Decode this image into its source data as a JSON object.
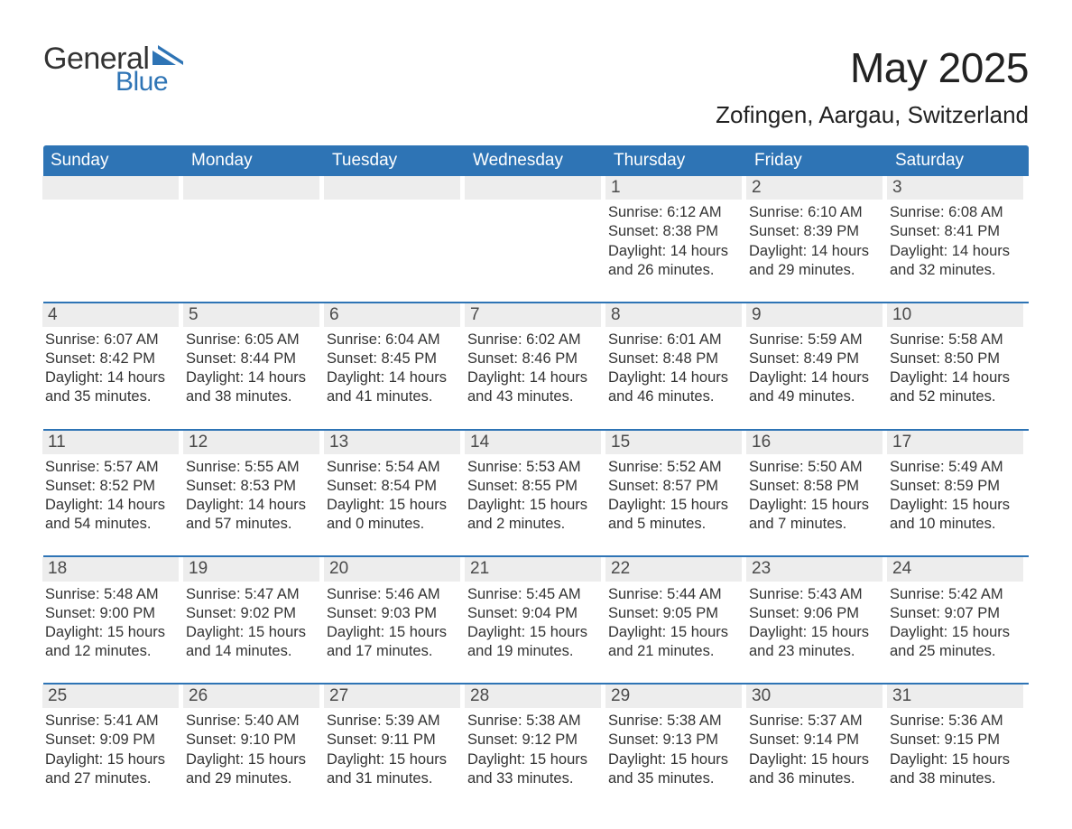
{
  "brand": {
    "word1": "General",
    "word2": "Blue",
    "word1_color": "#333333",
    "word2_color": "#2e74b5",
    "mark_color": "#2e74b5"
  },
  "title": "May 2025",
  "location": "Zofingen, Aargau, Switzerland",
  "colors": {
    "header_bg": "#2e74b5",
    "header_text": "#ffffff",
    "daynum_bg": "#ededed",
    "daynum_text": "#4a4a4a",
    "body_text": "#333333",
    "rule": "#2e74b5",
    "page_bg": "#ffffff"
  },
  "typography": {
    "title_fontsize_pt": 34,
    "location_fontsize_pt": 20,
    "weekday_fontsize_pt": 14,
    "daynum_fontsize_pt": 14,
    "body_fontsize_pt": 12
  },
  "weekdays": [
    "Sunday",
    "Monday",
    "Tuesday",
    "Wednesday",
    "Thursday",
    "Friday",
    "Saturday"
  ],
  "weeks": [
    [
      {
        "empty": true
      },
      {
        "empty": true
      },
      {
        "empty": true
      },
      {
        "empty": true
      },
      {
        "num": "1",
        "sunrise": "Sunrise: 6:12 AM",
        "sunset": "Sunset: 8:38 PM",
        "day1": "Daylight: 14 hours",
        "day2": "and 26 minutes."
      },
      {
        "num": "2",
        "sunrise": "Sunrise: 6:10 AM",
        "sunset": "Sunset: 8:39 PM",
        "day1": "Daylight: 14 hours",
        "day2": "and 29 minutes."
      },
      {
        "num": "3",
        "sunrise": "Sunrise: 6:08 AM",
        "sunset": "Sunset: 8:41 PM",
        "day1": "Daylight: 14 hours",
        "day2": "and 32 minutes."
      }
    ],
    [
      {
        "num": "4",
        "sunrise": "Sunrise: 6:07 AM",
        "sunset": "Sunset: 8:42 PM",
        "day1": "Daylight: 14 hours",
        "day2": "and 35 minutes."
      },
      {
        "num": "5",
        "sunrise": "Sunrise: 6:05 AM",
        "sunset": "Sunset: 8:44 PM",
        "day1": "Daylight: 14 hours",
        "day2": "and 38 minutes."
      },
      {
        "num": "6",
        "sunrise": "Sunrise: 6:04 AM",
        "sunset": "Sunset: 8:45 PM",
        "day1": "Daylight: 14 hours",
        "day2": "and 41 minutes."
      },
      {
        "num": "7",
        "sunrise": "Sunrise: 6:02 AM",
        "sunset": "Sunset: 8:46 PM",
        "day1": "Daylight: 14 hours",
        "day2": "and 43 minutes."
      },
      {
        "num": "8",
        "sunrise": "Sunrise: 6:01 AM",
        "sunset": "Sunset: 8:48 PM",
        "day1": "Daylight: 14 hours",
        "day2": "and 46 minutes."
      },
      {
        "num": "9",
        "sunrise": "Sunrise: 5:59 AM",
        "sunset": "Sunset: 8:49 PM",
        "day1": "Daylight: 14 hours",
        "day2": "and 49 minutes."
      },
      {
        "num": "10",
        "sunrise": "Sunrise: 5:58 AM",
        "sunset": "Sunset: 8:50 PM",
        "day1": "Daylight: 14 hours",
        "day2": "and 52 minutes."
      }
    ],
    [
      {
        "num": "11",
        "sunrise": "Sunrise: 5:57 AM",
        "sunset": "Sunset: 8:52 PM",
        "day1": "Daylight: 14 hours",
        "day2": "and 54 minutes."
      },
      {
        "num": "12",
        "sunrise": "Sunrise: 5:55 AM",
        "sunset": "Sunset: 8:53 PM",
        "day1": "Daylight: 14 hours",
        "day2": "and 57 minutes."
      },
      {
        "num": "13",
        "sunrise": "Sunrise: 5:54 AM",
        "sunset": "Sunset: 8:54 PM",
        "day1": "Daylight: 15 hours",
        "day2": "and 0 minutes."
      },
      {
        "num": "14",
        "sunrise": "Sunrise: 5:53 AM",
        "sunset": "Sunset: 8:55 PM",
        "day1": "Daylight: 15 hours",
        "day2": "and 2 minutes."
      },
      {
        "num": "15",
        "sunrise": "Sunrise: 5:52 AM",
        "sunset": "Sunset: 8:57 PM",
        "day1": "Daylight: 15 hours",
        "day2": "and 5 minutes."
      },
      {
        "num": "16",
        "sunrise": "Sunrise: 5:50 AM",
        "sunset": "Sunset: 8:58 PM",
        "day1": "Daylight: 15 hours",
        "day2": "and 7 minutes."
      },
      {
        "num": "17",
        "sunrise": "Sunrise: 5:49 AM",
        "sunset": "Sunset: 8:59 PM",
        "day1": "Daylight: 15 hours",
        "day2": "and 10 minutes."
      }
    ],
    [
      {
        "num": "18",
        "sunrise": "Sunrise: 5:48 AM",
        "sunset": "Sunset: 9:00 PM",
        "day1": "Daylight: 15 hours",
        "day2": "and 12 minutes."
      },
      {
        "num": "19",
        "sunrise": "Sunrise: 5:47 AM",
        "sunset": "Sunset: 9:02 PM",
        "day1": "Daylight: 15 hours",
        "day2": "and 14 minutes."
      },
      {
        "num": "20",
        "sunrise": "Sunrise: 5:46 AM",
        "sunset": "Sunset: 9:03 PM",
        "day1": "Daylight: 15 hours",
        "day2": "and 17 minutes."
      },
      {
        "num": "21",
        "sunrise": "Sunrise: 5:45 AM",
        "sunset": "Sunset: 9:04 PM",
        "day1": "Daylight: 15 hours",
        "day2": "and 19 minutes."
      },
      {
        "num": "22",
        "sunrise": "Sunrise: 5:44 AM",
        "sunset": "Sunset: 9:05 PM",
        "day1": "Daylight: 15 hours",
        "day2": "and 21 minutes."
      },
      {
        "num": "23",
        "sunrise": "Sunrise: 5:43 AM",
        "sunset": "Sunset: 9:06 PM",
        "day1": "Daylight: 15 hours",
        "day2": "and 23 minutes."
      },
      {
        "num": "24",
        "sunrise": "Sunrise: 5:42 AM",
        "sunset": "Sunset: 9:07 PM",
        "day1": "Daylight: 15 hours",
        "day2": "and 25 minutes."
      }
    ],
    [
      {
        "num": "25",
        "sunrise": "Sunrise: 5:41 AM",
        "sunset": "Sunset: 9:09 PM",
        "day1": "Daylight: 15 hours",
        "day2": "and 27 minutes."
      },
      {
        "num": "26",
        "sunrise": "Sunrise: 5:40 AM",
        "sunset": "Sunset: 9:10 PM",
        "day1": "Daylight: 15 hours",
        "day2": "and 29 minutes."
      },
      {
        "num": "27",
        "sunrise": "Sunrise: 5:39 AM",
        "sunset": "Sunset: 9:11 PM",
        "day1": "Daylight: 15 hours",
        "day2": "and 31 minutes."
      },
      {
        "num": "28",
        "sunrise": "Sunrise: 5:38 AM",
        "sunset": "Sunset: 9:12 PM",
        "day1": "Daylight: 15 hours",
        "day2": "and 33 minutes."
      },
      {
        "num": "29",
        "sunrise": "Sunrise: 5:38 AM",
        "sunset": "Sunset: 9:13 PM",
        "day1": "Daylight: 15 hours",
        "day2": "and 35 minutes."
      },
      {
        "num": "30",
        "sunrise": "Sunrise: 5:37 AM",
        "sunset": "Sunset: 9:14 PM",
        "day1": "Daylight: 15 hours",
        "day2": "and 36 minutes."
      },
      {
        "num": "31",
        "sunrise": "Sunrise: 5:36 AM",
        "sunset": "Sunset: 9:15 PM",
        "day1": "Daylight: 15 hours",
        "day2": "and 38 minutes."
      }
    ]
  ]
}
